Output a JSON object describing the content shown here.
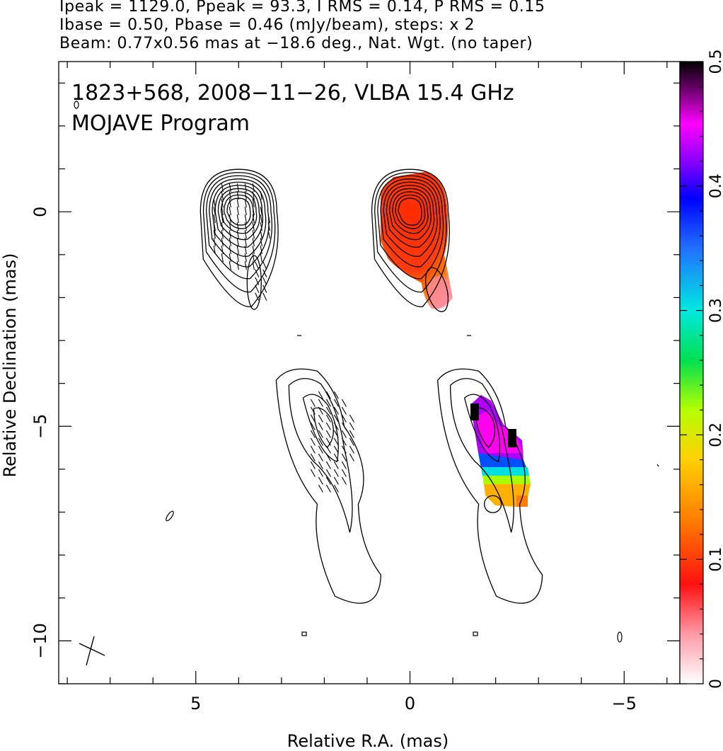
{
  "header": {
    "line1": "Ipeak = 1129.0, Ppeak = 93.3, I RMS = 0.14, P RMS = 0.15",
    "line2": "Ibase = 0.50, Pbase = 0.46 (mJy/beam), steps: x 2",
    "line3": "Beam: 0.77x0.56 mas at −18.6 deg., Nat. Wgt. (no taper)"
  },
  "chart_data": {
    "type": "heatmap",
    "title": "1823+568, 2008−11−26, VLBA 15.4 GHz",
    "subtitle": "MOJAVE Program",
    "xlabel": "Relative R.A. (mas)",
    "ylabel": "Relative Declination (mas)",
    "xlim": [
      8.2,
      -6.3
    ],
    "ylim": [
      -11.0,
      3.5
    ],
    "x_reversed": true,
    "xticks": [
      5,
      0,
      -5
    ],
    "xtick_labels": [
      "5",
      "0",
      "−5"
    ],
    "yticks": [
      0,
      -5,
      -10
    ],
    "ytick_labels": [
      "0",
      "−5",
      "−10"
    ],
    "colorbar": {
      "min": 0,
      "max": 0.5,
      "ticks": [
        0,
        0.1,
        0.2,
        0.3,
        0.4,
        0.5
      ],
      "tick_labels": [
        "0",
        "0.1",
        "0.2",
        "0.3",
        "0.4",
        "0.5"
      ]
    },
    "panels": [
      {
        "name": "Total intensity contours with EVPA ticks",
        "offset_mas": [
          4,
          0
        ]
      },
      {
        "name": "Polarized intensity colour map with contours",
        "offset_mas": [
          0,
          0
        ]
      },
      {
        "name": "EVPA ticks on lowest contours",
        "offset_mas": [
          2,
          -5
        ]
      },
      {
        "name": "Fractional polarization colour map",
        "offset_mas": [
          -2,
          -5
        ]
      }
    ],
    "peak_I_mJy_per_beam": 1129.0,
    "peak_P_mJy_per_beam": 93.3,
    "beam": {
      "major_mas": 0.77,
      "minor_mas": 0.56,
      "pa_deg": -18.6
    },
    "contour_steps": "x 2"
  }
}
